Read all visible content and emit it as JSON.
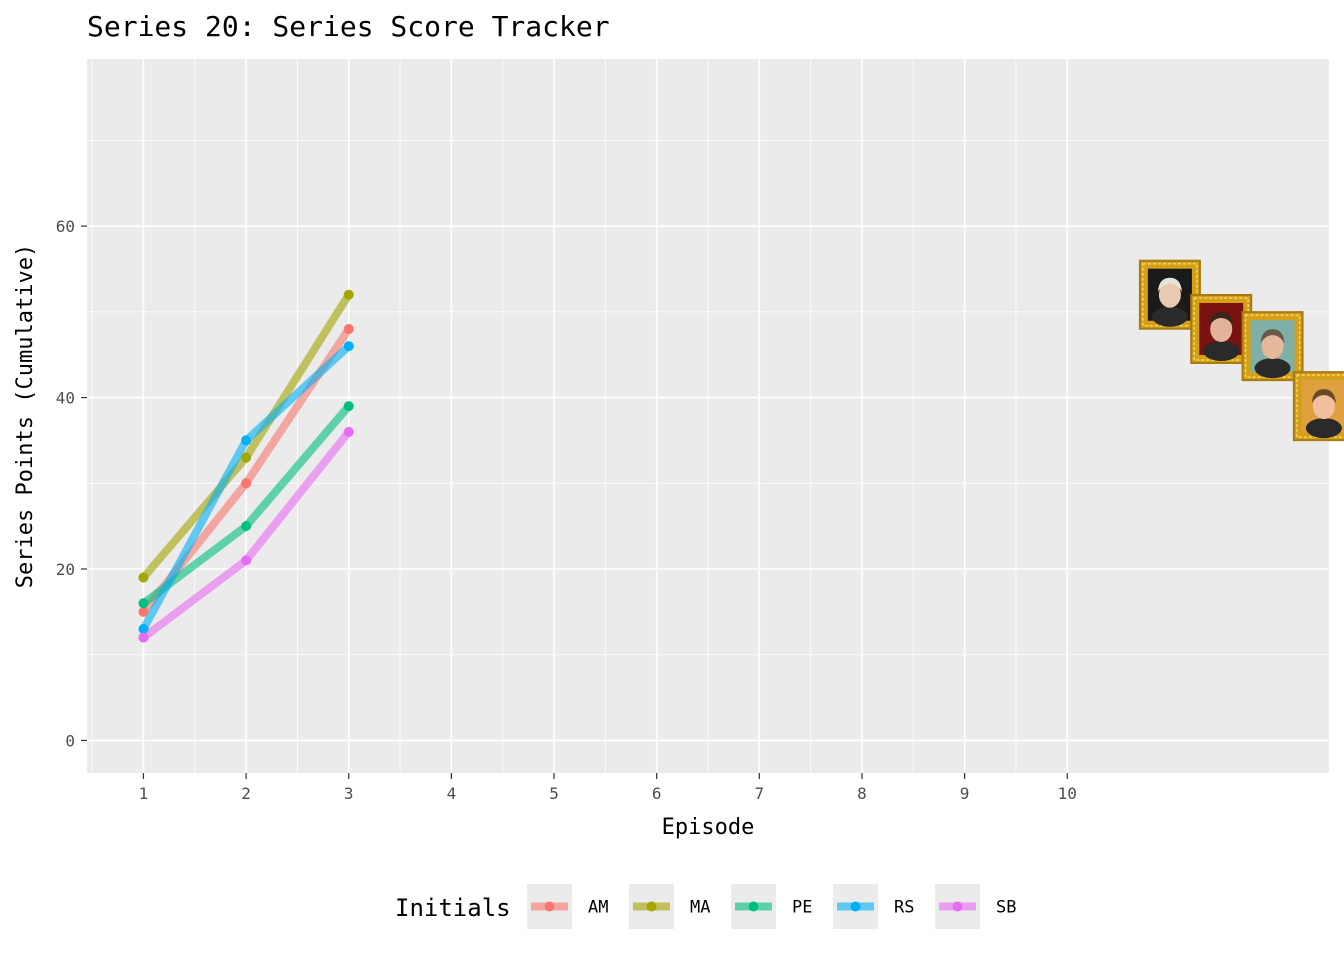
{
  "chart_data": {
    "type": "line",
    "title": "Series 20: Series Score Tracker",
    "xlabel": "Episode",
    "ylabel": "Series Points (Cumulative)",
    "x_ticks": [
      1,
      2,
      3,
      4,
      5,
      6,
      7,
      8,
      9,
      10
    ],
    "y_ticks": [
      0,
      20,
      40,
      60
    ],
    "xlim": [
      0.45,
      12.55
    ],
    "ylim": [
      -3.8,
      79.5
    ],
    "grid": true,
    "legend": {
      "title": "Initials",
      "position": "bottom"
    },
    "x": [
      1,
      2,
      3
    ],
    "series": [
      {
        "name": "AM",
        "color": "#F8766D",
        "values": [
          15,
          30,
          48
        ]
      },
      {
        "name": "MA",
        "color": "#A3A500",
        "values": [
          19,
          33,
          52
        ]
      },
      {
        "name": "PE",
        "color": "#00BF7D",
        "values": [
          16,
          25,
          39
        ]
      },
      {
        "name": "RS",
        "color": "#00B0F6",
        "values": [
          13,
          35,
          46
        ]
      },
      {
        "name": "SB",
        "color": "#E76BF3",
        "values": [
          12,
          21,
          36
        ]
      }
    ],
    "portraits": [
      {
        "icon": "framed-portrait-icon",
        "x": 11.0,
        "y": 52,
        "frame_color": "#D4A017",
        "bg": "#1a1a1a",
        "skin": "#e9c9b0",
        "hair": "#e6e2d6"
      },
      {
        "icon": "framed-portrait-icon",
        "x": 11.5,
        "y": 48,
        "frame_color": "#D4A017",
        "bg": "#7a1212",
        "skin": "#e2b39a",
        "hair": "#3b2418"
      },
      {
        "icon": "framed-portrait-icon",
        "x": 12.0,
        "y": 46,
        "frame_color": "#D4A017",
        "bg": "#7fb0a8",
        "skin": "#e5b89c",
        "hair": "#6b5a4a"
      },
      {
        "icon": "framed-portrait-icon",
        "x": 12.5,
        "y": 39,
        "frame_color": "#D4A017",
        "bg": "#e0a040",
        "skin": "#f0c0a0",
        "hair": "#6b4a2a"
      },
      {
        "icon": "framed-portrait-icon",
        "x": 13.0,
        "y": 36,
        "frame_color": "#D4A017",
        "bg": "#c8a878",
        "skin": "#a87858",
        "hair": "#1a1a1a"
      }
    ]
  }
}
